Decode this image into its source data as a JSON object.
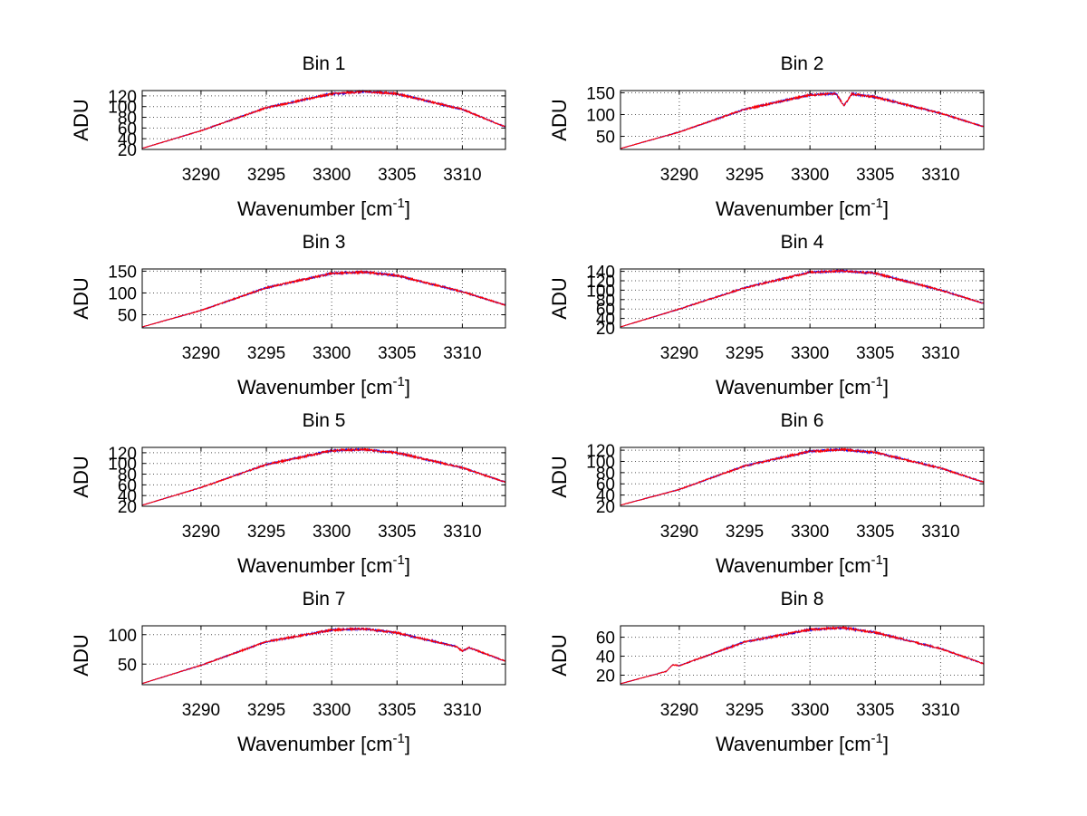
{
  "chart_data": [
    {
      "type": "line",
      "title": "Bin 1",
      "xlabel": "Wavenumber [cm",
      "xlabel_sup": "-1",
      "xlabel_end": "]",
      "ylabel": "ADU",
      "xlim": [
        3285.5,
        3313.3
      ],
      "ylim": [
        20,
        130
      ],
      "xticks": [
        3290,
        3295,
        3300,
        3305,
        3310
      ],
      "yticks": [
        20,
        40,
        60,
        80,
        100,
        120
      ],
      "yticklabels": [
        "20",
        "40",
        "60",
        "80",
        "100",
        "120"
      ],
      "series": [
        {
          "color": "#0000ff",
          "x": [
            3285.5,
            3290,
            3295,
            3300,
            3302.5,
            3305,
            3310,
            3313.3
          ],
          "y": [
            22,
            55,
            98,
            124,
            128,
            124,
            95,
            62
          ]
        },
        {
          "color": "#ff0000",
          "x": [
            3285.5,
            3290,
            3295,
            3300,
            3302.5,
            3305,
            3310,
            3313.3
          ],
          "y": [
            22,
            55,
            98,
            124,
            128,
            124,
            95,
            62
          ]
        }
      ]
    },
    {
      "type": "line",
      "title": "Bin 2",
      "xlabel": "Wavenumber [cm",
      "xlabel_sup": "-1",
      "xlabel_end": "]",
      "ylabel": "ADU",
      "xlim": [
        3285.5,
        3313.3
      ],
      "ylim": [
        20,
        155
      ],
      "xticks": [
        3290,
        3295,
        3300,
        3305,
        3310
      ],
      "yticks": [
        50,
        100,
        150
      ],
      "yticklabels": [
        "50",
        "100",
        "150"
      ],
      "series": [
        {
          "color": "#0000ff",
          "x": [
            3285.5,
            3290,
            3295,
            3300,
            3302,
            3302.6,
            3303.2,
            3305,
            3310,
            3313.3
          ],
          "y": [
            22,
            60,
            112,
            145,
            148,
            120,
            147,
            140,
            103,
            72
          ]
        },
        {
          "color": "#ff0000",
          "x": [
            3285.5,
            3290,
            3295,
            3300,
            3302,
            3302.6,
            3303.2,
            3305,
            3310,
            3313.3
          ],
          "y": [
            22,
            60,
            112,
            145,
            148,
            120,
            147,
            140,
            103,
            72
          ]
        }
      ]
    },
    {
      "type": "line",
      "title": "Bin 3",
      "xlabel": "Wavenumber [cm",
      "xlabel_sup": "-1",
      "xlabel_end": "]",
      "ylabel": "ADU",
      "xlim": [
        3285.5,
        3313.3
      ],
      "ylim": [
        20,
        155
      ],
      "xticks": [
        3290,
        3295,
        3300,
        3305,
        3310
      ],
      "yticks": [
        50,
        100,
        150
      ],
      "yticklabels": [
        "50",
        "100",
        "150"
      ],
      "series": [
        {
          "color": "#0000ff",
          "x": [
            3285.5,
            3290,
            3295,
            3300,
            3302.5,
            3305,
            3310,
            3313.3
          ],
          "y": [
            22,
            60,
            112,
            145,
            148,
            140,
            103,
            72
          ]
        },
        {
          "color": "#ff0000",
          "x": [
            3285.5,
            3290,
            3295,
            3300,
            3302.5,
            3305,
            3310,
            3313.3
          ],
          "y": [
            22,
            60,
            112,
            145,
            148,
            140,
            103,
            72
          ]
        }
      ]
    },
    {
      "type": "line",
      "title": "Bin 4",
      "xlabel": "Wavenumber [cm",
      "xlabel_sup": "-1",
      "xlabel_end": "]",
      "ylabel": "ADU",
      "xlim": [
        3285.5,
        3313.3
      ],
      "ylim": [
        20,
        145
      ],
      "xticks": [
        3290,
        3295,
        3300,
        3305,
        3310
      ],
      "yticks": [
        20,
        40,
        60,
        80,
        100,
        120,
        140
      ],
      "yticklabels": [
        "20",
        "40",
        "60",
        "80",
        "100",
        "120",
        "140"
      ],
      "series": [
        {
          "color": "#0000ff",
          "x": [
            3285.5,
            3290,
            3295,
            3300,
            3302.5,
            3305,
            3310,
            3313.3
          ],
          "y": [
            22,
            60,
            105,
            138,
            141,
            136,
            100,
            72
          ]
        },
        {
          "color": "#ff0000",
          "x": [
            3285.5,
            3290,
            3295,
            3300,
            3302.5,
            3305,
            3310,
            3313.3
          ],
          "y": [
            22,
            60,
            105,
            138,
            141,
            136,
            100,
            72
          ]
        }
      ]
    },
    {
      "type": "line",
      "title": "Bin 5",
      "xlabel": "Wavenumber [cm",
      "xlabel_sup": "-1",
      "xlabel_end": "]",
      "ylabel": "ADU",
      "xlim": [
        3285.5,
        3313.3
      ],
      "ylim": [
        20,
        130
      ],
      "xticks": [
        3290,
        3295,
        3300,
        3305,
        3310
      ],
      "yticks": [
        20,
        40,
        60,
        80,
        100,
        120
      ],
      "yticklabels": [
        "20",
        "40",
        "60",
        "80",
        "100",
        "120"
      ],
      "series": [
        {
          "color": "#0000ff",
          "x": [
            3285.5,
            3290,
            3295,
            3300,
            3302.5,
            3305,
            3310,
            3313.3
          ],
          "y": [
            22,
            55,
            98,
            124,
            126,
            120,
            92,
            65
          ]
        },
        {
          "color": "#ff0000",
          "x": [
            3285.5,
            3290,
            3295,
            3300,
            3302.5,
            3305,
            3310,
            3313.3
          ],
          "y": [
            22,
            55,
            98,
            124,
            126,
            120,
            92,
            65
          ]
        }
      ]
    },
    {
      "type": "line",
      "title": "Bin 6",
      "xlabel": "Wavenumber [cm",
      "xlabel_sup": "-1",
      "xlabel_end": "]",
      "ylabel": "ADU",
      "xlim": [
        3285.5,
        3313.3
      ],
      "ylim": [
        20,
        125
      ],
      "xticks": [
        3290,
        3295,
        3300,
        3305,
        3310
      ],
      "yticks": [
        20,
        40,
        60,
        80,
        100,
        120
      ],
      "yticklabels": [
        "20",
        "40",
        "60",
        "80",
        "100",
        "120"
      ],
      "series": [
        {
          "color": "#0000ff",
          "x": [
            3285.5,
            3290,
            3295,
            3300,
            3302.5,
            3305,
            3310,
            3313.3
          ],
          "y": [
            22,
            50,
            92,
            118,
            121,
            116,
            88,
            63
          ]
        },
        {
          "color": "#ff0000",
          "x": [
            3285.5,
            3290,
            3295,
            3300,
            3302.5,
            3305,
            3310,
            3313.3
          ],
          "y": [
            22,
            50,
            92,
            118,
            121,
            116,
            88,
            63
          ]
        }
      ]
    },
    {
      "type": "line",
      "title": "Bin 7",
      "xlabel": "Wavenumber [cm",
      "xlabel_sup": "-1",
      "xlabel_end": "]",
      "ylabel": "ADU",
      "xlim": [
        3285.5,
        3313.3
      ],
      "ylim": [
        15,
        115
      ],
      "xticks": [
        3290,
        3295,
        3300,
        3305,
        3310
      ],
      "yticks": [
        50,
        100
      ],
      "yticklabels": [
        "50",
        "100"
      ],
      "series": [
        {
          "color": "#0000ff",
          "x": [
            3285.5,
            3290,
            3295,
            3300,
            3302.5,
            3305,
            3309.5,
            3310,
            3310.5,
            3313.3
          ],
          "y": [
            17,
            48,
            88,
            108,
            110,
            103,
            80,
            72,
            78,
            55
          ]
        },
        {
          "color": "#ff0000",
          "x": [
            3285.5,
            3290,
            3295,
            3300,
            3302.5,
            3305,
            3309.5,
            3310,
            3310.5,
            3313.3
          ],
          "y": [
            17,
            48,
            88,
            108,
            110,
            103,
            80,
            72,
            78,
            55
          ]
        }
      ]
    },
    {
      "type": "line",
      "title": "Bin 8",
      "xlabel": "Wavenumber [cm",
      "xlabel_sup": "-1",
      "xlabel_end": "]",
      "ylabel": "ADU",
      "xlim": [
        3285.5,
        3313.3
      ],
      "ylim": [
        10,
        72
      ],
      "xticks": [
        3290,
        3295,
        3300,
        3305,
        3310
      ],
      "yticks": [
        20,
        40,
        60
      ],
      "yticklabels": [
        "20",
        "40",
        "60"
      ],
      "series": [
        {
          "color": "#0000ff",
          "x": [
            3285.5,
            3289,
            3289.5,
            3290,
            3295,
            3300,
            3302.5,
            3305,
            3310,
            3313.3
          ],
          "y": [
            11,
            24,
            31,
            30,
            55,
            68,
            70,
            65,
            48,
            32
          ]
        },
        {
          "color": "#ff0000",
          "x": [
            3285.5,
            3289,
            3289.5,
            3290,
            3295,
            3300,
            3302.5,
            3305,
            3310,
            3313.3
          ],
          "y": [
            11,
            24,
            31,
            30,
            55,
            68,
            70,
            65,
            48,
            32
          ]
        }
      ]
    }
  ]
}
